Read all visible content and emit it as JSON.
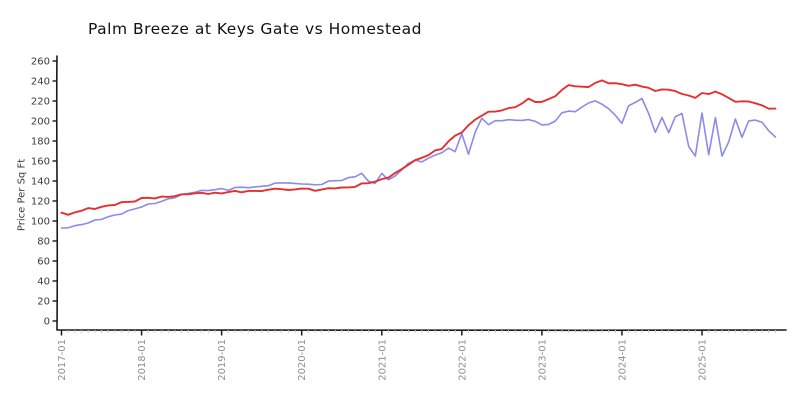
{
  "colors": {
    "axis": "#1a1a1a",
    "x_tick_label": "#8f8f8f",
    "y_tick_label": "#3c3c3c",
    "minor_tick": "#c9c9c9",
    "red_series": "#e53030",
    "blue_series": "#8b8bea"
  },
  "chart_data": {
    "type": "line",
    "style": "xkcd-sketch",
    "title": "Palm Breeze at Keys Gate vs Homestead",
    "xlabel": "",
    "ylabel": "Price Per Sq Ft",
    "grid": false,
    "legend": "none",
    "x_unit": "month",
    "x_range": [
      "2017-01",
      "2025-12"
    ],
    "ylim": [
      0,
      260
    ],
    "y_ticks": [
      0,
      20,
      40,
      60,
      80,
      100,
      120,
      140,
      160,
      180,
      200,
      220,
      240,
      260
    ],
    "x_tick_labels": [
      "2017-01",
      "2018-01",
      "2019-01",
      "2020-01",
      "2021-01",
      "2022-01",
      "2023-01",
      "2024-01",
      "2025-01"
    ],
    "series": [
      {
        "name": "blue-series",
        "color": "#8b8bea",
        "first_month": "2017-01",
        "values": [
          93,
          94,
          95,
          97,
          98,
          100,
          102,
          104,
          106,
          108,
          110,
          112,
          114,
          116,
          118,
          120,
          122,
          124,
          126,
          127,
          129,
          130,
          131,
          132,
          132,
          131,
          133,
          133,
          134,
          134,
          135,
          136,
          137,
          138,
          138,
          137,
          138,
          137,
          136,
          137,
          139,
          140,
          141,
          143,
          145,
          148,
          139,
          138,
          147,
          141,
          146,
          151,
          158,
          161,
          158,
          163,
          166,
          168,
          174,
          169,
          187,
          167,
          188,
          203,
          197,
          200,
          201,
          201,
          200,
          201,
          201,
          200,
          197,
          196,
          200,
          208,
          209,
          210,
          214,
          218,
          221,
          216,
          212,
          206,
          197,
          216,
          219,
          222,
          208,
          188,
          203,
          189,
          204,
          208,
          175,
          164,
          208,
          166,
          203,
          166,
          179,
          202,
          184,
          199,
          201,
          199,
          190,
          185
        ]
      },
      {
        "name": "red-series",
        "color": "#e53030",
        "first_month": "2017-01",
        "values": [
          109,
          106,
          109,
          111,
          112,
          112,
          114,
          115,
          117,
          119,
          119,
          120,
          122,
          123,
          123,
          124,
          125,
          125,
          126,
          127,
          127,
          128,
          128,
          128,
          128,
          129,
          129,
          129,
          130,
          130,
          131,
          131,
          132,
          132,
          130,
          132,
          133,
          132,
          131,
          131,
          132,
          133,
          133,
          134,
          135,
          137,
          138,
          139,
          141,
          144,
          148,
          152,
          157,
          160,
          163,
          166,
          170,
          173,
          180,
          185,
          189,
          195,
          201,
          206,
          209,
          210,
          211,
          212,
          214,
          217,
          222,
          220,
          219,
          222,
          225,
          230,
          236,
          235,
          234,
          235,
          238,
          240,
          238,
          237,
          237,
          236,
          236,
          235,
          233,
          229,
          232,
          231,
          230,
          228,
          225,
          223,
          228,
          226,
          230,
          227,
          223,
          220,
          219,
          219,
          218,
          215,
          213,
          213
        ]
      }
    ]
  }
}
